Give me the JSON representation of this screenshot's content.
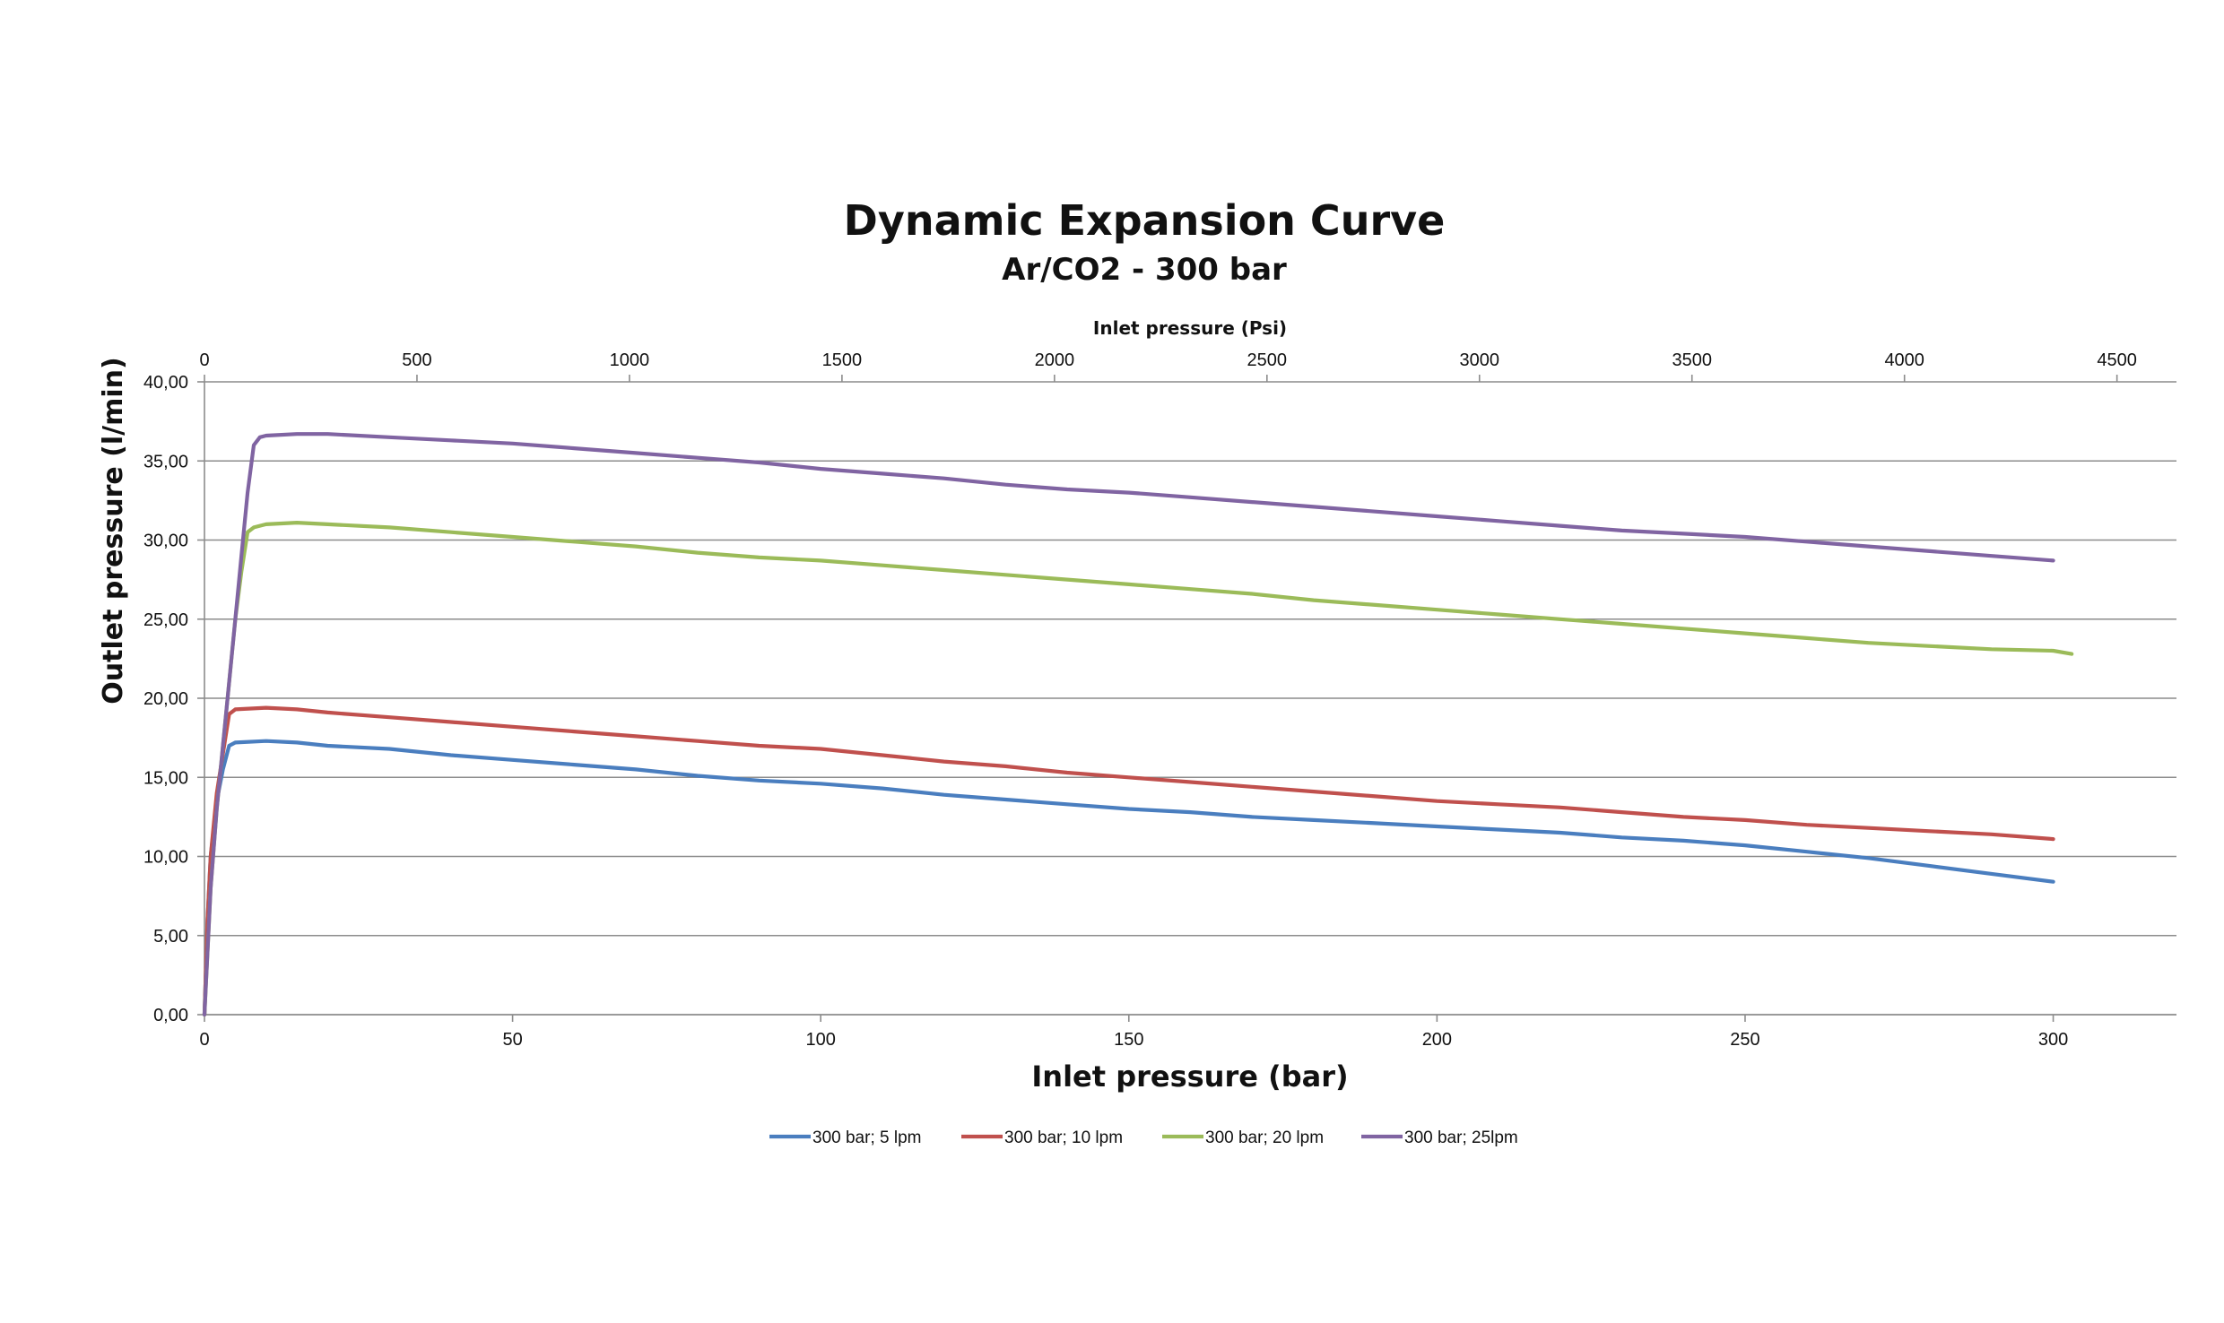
{
  "chart_data": {
    "type": "line",
    "title": "Dynamic Expansion Curve",
    "subtitle": "Ar/CO2 - 300 bar",
    "xlabel": "Inlet pressure (bar)",
    "x2label": "Inlet pressure (Psi)",
    "ylabel": "Outlet pressure (l/min)",
    "xlim": [
      0,
      320
    ],
    "x2lim": [
      0,
      4640
    ],
    "ylim": [
      0,
      40
    ],
    "x_ticks": [
      "0",
      "50",
      "100",
      "150",
      "200",
      "250",
      "300"
    ],
    "x2_ticks": [
      "0",
      "500",
      "1000",
      "1500",
      "2000",
      "2500",
      "3000",
      "3500",
      "4000",
      "4500"
    ],
    "y_ticks": [
      "0,00",
      "5,00",
      "10,00",
      "15,00",
      "20,00",
      "25,00",
      "30,00",
      "35,00",
      "40,00"
    ],
    "grid": true,
    "legend_position": "bottom",
    "series": [
      {
        "name": "300 bar; 5 lpm",
        "color": "#4a7ebf",
        "x": [
          0,
          0.5,
          1,
          2,
          3,
          4,
          5,
          10,
          15,
          20,
          30,
          40,
          50,
          60,
          70,
          80,
          90,
          100,
          110,
          120,
          130,
          140,
          150,
          160,
          170,
          180,
          190,
          200,
          210,
          220,
          230,
          240,
          250,
          260,
          270,
          280,
          290,
          300
        ],
        "y": [
          0,
          6,
          10,
          13.5,
          15.5,
          17,
          17.2,
          17.3,
          17.2,
          17,
          16.8,
          16.4,
          16.1,
          15.8,
          15.5,
          15.1,
          14.8,
          14.6,
          14.3,
          13.9,
          13.6,
          13.3,
          13,
          12.8,
          12.5,
          12.3,
          12.1,
          11.9,
          11.7,
          11.5,
          11.2,
          11,
          10.7,
          10.3,
          9.9,
          9.4,
          8.9,
          8.4
        ]
      },
      {
        "name": "300 bar; 10 lpm",
        "color": "#c0504d",
        "x": [
          0,
          0.5,
          1,
          2,
          3,
          4,
          5,
          10,
          15,
          20,
          30,
          40,
          50,
          60,
          70,
          80,
          90,
          100,
          110,
          120,
          130,
          140,
          150,
          160,
          170,
          180,
          190,
          200,
          210,
          220,
          230,
          240,
          250,
          260,
          270,
          280,
          290,
          300
        ],
        "y": [
          0,
          6,
          10,
          14,
          16.5,
          19,
          19.3,
          19.4,
          19.3,
          19.1,
          18.8,
          18.5,
          18.2,
          17.9,
          17.6,
          17.3,
          17,
          16.8,
          16.4,
          16,
          15.7,
          15.3,
          15,
          14.7,
          14.4,
          14.1,
          13.8,
          13.5,
          13.3,
          13.1,
          12.8,
          12.5,
          12.3,
          12,
          11.8,
          11.6,
          11.4,
          11.1
        ]
      },
      {
        "name": "300 bar; 20 lpm",
        "color": "#9bbb59",
        "x": [
          0,
          1,
          2,
          3,
          4,
          5,
          6,
          7,
          8,
          10,
          15,
          20,
          30,
          40,
          50,
          60,
          70,
          80,
          90,
          100,
          110,
          120,
          130,
          140,
          150,
          160,
          170,
          180,
          190,
          200,
          210,
          220,
          230,
          240,
          250,
          260,
          270,
          280,
          290,
          300,
          303
        ],
        "y": [
          0,
          8,
          13,
          17,
          21,
          25,
          28,
          30.5,
          30.8,
          31,
          31.1,
          31,
          30.8,
          30.5,
          30.2,
          29.9,
          29.6,
          29.2,
          28.9,
          28.7,
          28.4,
          28.1,
          27.8,
          27.5,
          27.2,
          26.9,
          26.6,
          26.2,
          25.9,
          25.6,
          25.3,
          25,
          24.7,
          24.4,
          24.1,
          23.8,
          23.5,
          23.3,
          23.1,
          23,
          22.8
        ]
      },
      {
        "name": "300 bar; 25lpm",
        "color": "#8064a2",
        "x": [
          0,
          1,
          2,
          3,
          4,
          5,
          6,
          7,
          8,
          9,
          10,
          15,
          20,
          30,
          40,
          50,
          60,
          70,
          80,
          90,
          100,
          110,
          120,
          130,
          140,
          150,
          160,
          170,
          180,
          190,
          200,
          210,
          220,
          230,
          240,
          250,
          260,
          270,
          280,
          290,
          300
        ],
        "y": [
          0,
          8,
          13,
          17,
          21,
          25,
          29,
          33,
          36,
          36.5,
          36.6,
          36.7,
          36.7,
          36.5,
          36.3,
          36.1,
          35.8,
          35.5,
          35.2,
          34.9,
          34.5,
          34.2,
          33.9,
          33.5,
          33.2,
          33,
          32.7,
          32.4,
          32.1,
          31.8,
          31.5,
          31.2,
          30.9,
          30.6,
          30.4,
          30.2,
          29.9,
          29.6,
          29.3,
          29,
          28.7
        ]
      }
    ]
  }
}
